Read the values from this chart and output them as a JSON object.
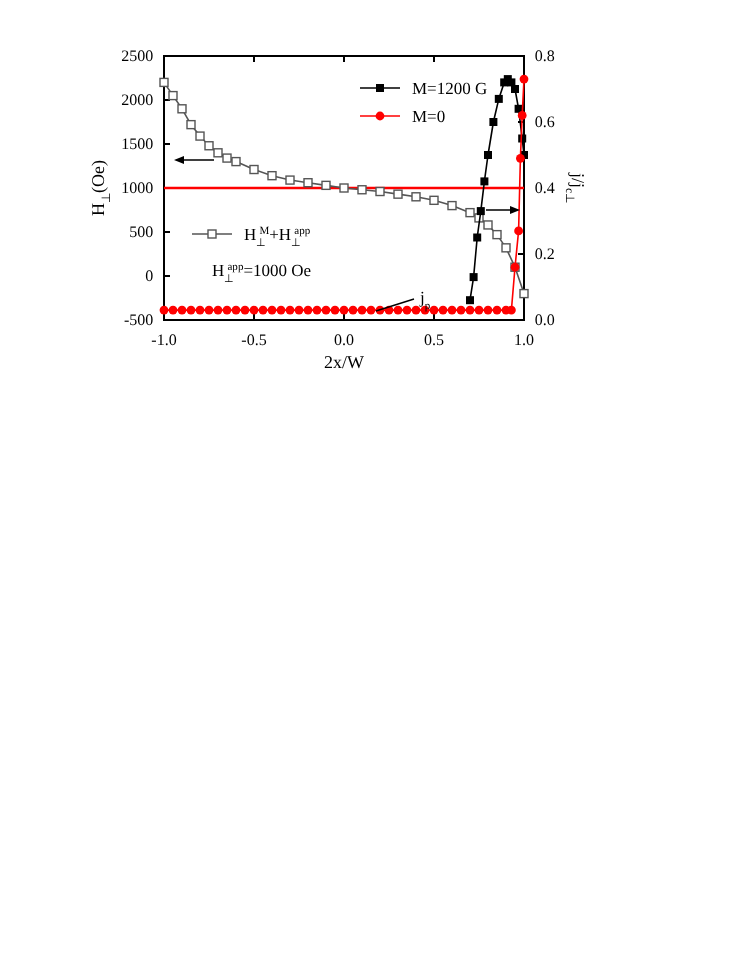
{
  "chart_data": {
    "type": "line",
    "xlabel": "2x/W",
    "ylabel": "H$_{⊥}$(Oe)",
    "y2label": "j/j$_{c⊥}$",
    "xlim": [
      -1.0,
      1.0
    ],
    "xticks": [
      {
        "value": -1,
        "label": "-1.0"
      },
      -0.5,
      {
        "value": 0,
        "label": "0.0"
      },
      0.5,
      {
        "value": 1,
        "label": "1.0"
      }
    ],
    "ylim": [
      -500,
      2500
    ],
    "yticks": [
      -500,
      0,
      500,
      1000,
      1500,
      2000,
      2500
    ],
    "y2lim": [
      0,
      0.8
    ],
    "y2ticks": [
      {
        "value": 0,
        "label": "0.0"
      },
      0.2,
      0.4,
      0.6,
      0.8
    ],
    "legend": "top right",
    "series": [
      {
        "name": "M=1200 G",
        "axis": "y2",
        "marker": "square",
        "color": "#000000",
        "x": [
          0.7,
          0.72,
          0.74,
          0.76,
          0.78,
          0.8,
          0.83,
          0.86,
          0.89,
          0.91,
          0.93,
          0.95,
          0.97,
          0.99,
          1.0
        ],
        "values": [
          0.06,
          0.13,
          0.25,
          0.33,
          0.42,
          0.5,
          0.6,
          0.67,
          0.72,
          0.73,
          0.72,
          0.7,
          0.64,
          0.55,
          0.5
        ]
      },
      {
        "name": "M=0",
        "axis": "y2",
        "marker": "circle",
        "color": "#ff0000",
        "x": [
          -1,
          -0.95,
          -0.9,
          -0.85,
          -0.8,
          -0.75,
          -0.7,
          -0.65,
          -0.6,
          -0.55,
          -0.5,
          -0.45,
          -0.4,
          -0.35,
          -0.3,
          -0.25,
          -0.2,
          -0.15,
          -0.1,
          -0.05,
          0,
          0.05,
          0.1,
          0.15,
          0.2,
          0.25,
          0.3,
          0.35,
          0.4,
          0.45,
          0.5,
          0.55,
          0.6,
          0.65,
          0.7,
          0.75,
          0.8,
          0.85,
          0.9,
          0.93,
          0.95,
          0.97,
          0.98,
          0.99,
          1.0
        ],
        "values": [
          0.03,
          0.03,
          0.03,
          0.03,
          0.03,
          0.03,
          0.03,
          0.03,
          0.03,
          0.03,
          0.03,
          0.03,
          0.03,
          0.03,
          0.03,
          0.03,
          0.03,
          0.03,
          0.03,
          0.03,
          0.03,
          0.03,
          0.03,
          0.03,
          0.03,
          0.03,
          0.03,
          0.03,
          0.03,
          0.03,
          0.03,
          0.03,
          0.03,
          0.03,
          0.03,
          0.03,
          0.03,
          0.03,
          0.03,
          0.03,
          0.16,
          0.27,
          0.49,
          0.62,
          0.73
        ]
      },
      {
        "name": "H$_{⊥}$$^{M}$+H$_{⊥}$$^{app}$",
        "axis": "y",
        "marker": "square_open",
        "color": "#555555",
        "x": [
          -1,
          -0.95,
          -0.9,
          -0.85,
          -0.8,
          -0.75,
          -0.7,
          -0.65,
          -0.6,
          -0.5,
          -0.4,
          -0.3,
          -0.2,
          -0.1,
          0,
          0.1,
          0.2,
          0.3,
          0.4,
          0.5,
          0.6,
          0.7,
          0.75,
          0.8,
          0.85,
          0.9,
          0.95,
          1.0
        ],
        "values": [
          2200,
          2050,
          1900,
          1720,
          1590,
          1480,
          1400,
          1340,
          1300,
          1210,
          1140,
          1090,
          1060,
          1030,
          1000,
          980,
          960,
          930,
          900,
          860,
          800,
          720,
          660,
          580,
          470,
          320,
          100,
          -200
        ]
      }
    ],
    "ref_lines": [
      {
        "axis": "y",
        "value": 1000,
        "color": "#ff0000"
      }
    ],
    "annotations": [
      {
        "text": "j$_{p}$",
        "x": 0.4,
        "y": -330
      },
      "H$_{⊥}$$^{app}$=1000 Oe"
    ]
  }
}
